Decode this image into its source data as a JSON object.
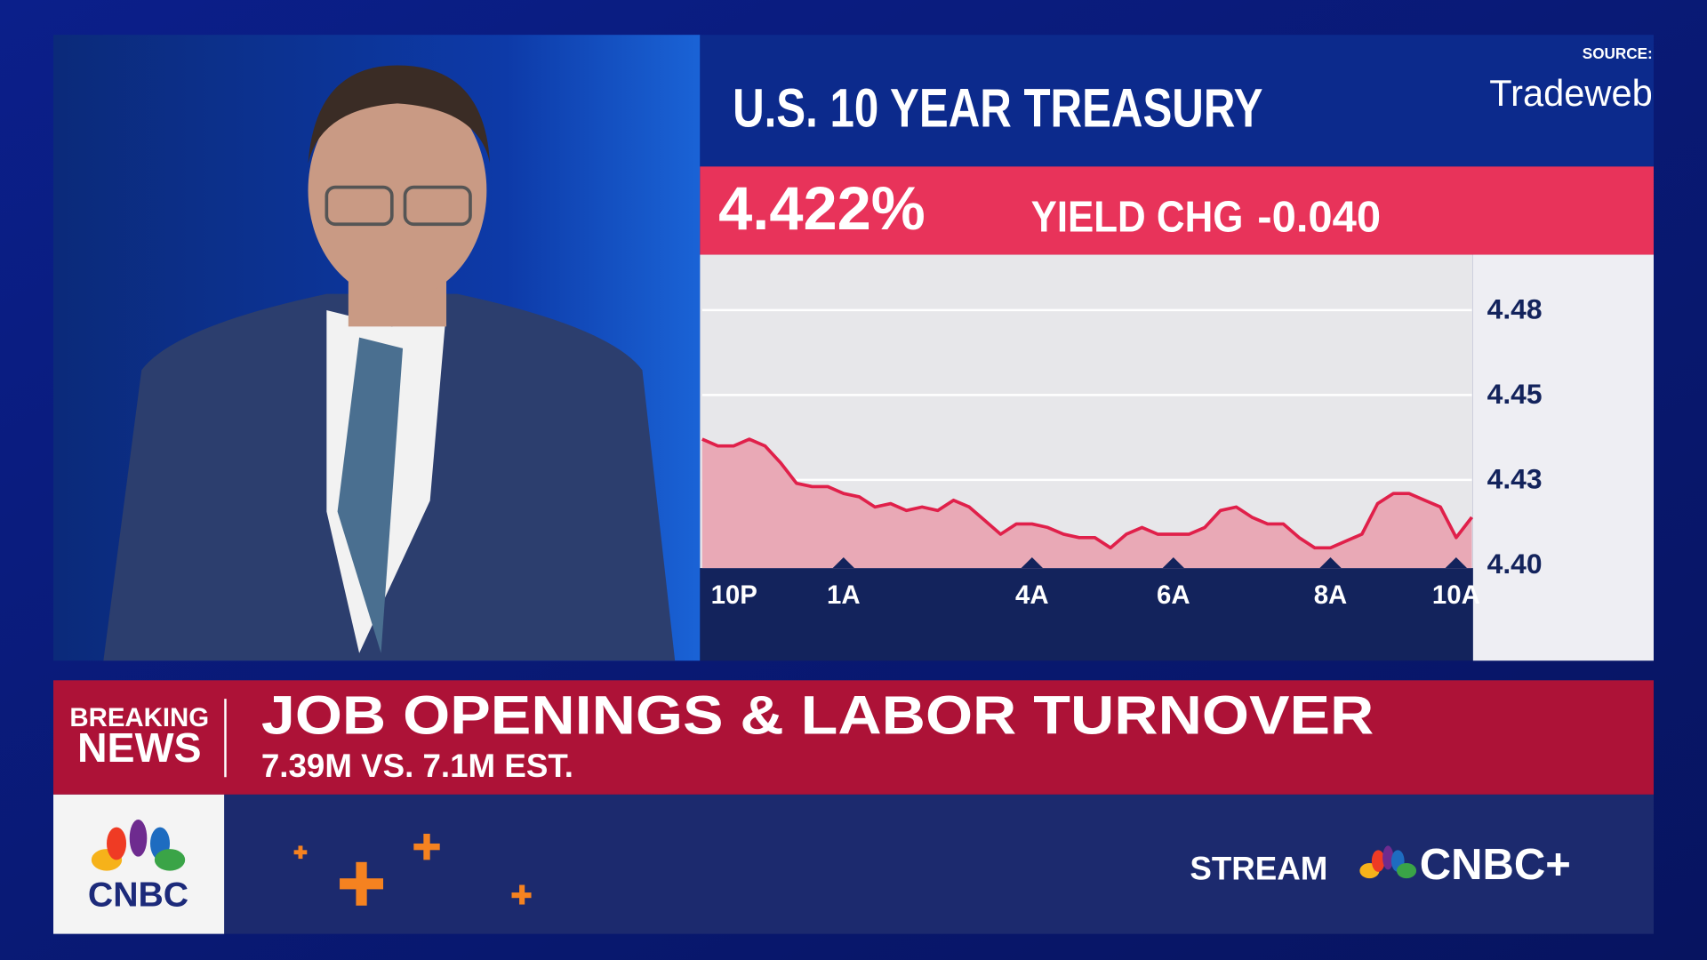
{
  "source": {
    "label": "SOURCE:",
    "name": "Tradeweb"
  },
  "quote": {
    "price": "4.422%",
    "change_label": "YIELD CHG",
    "change": "-0.040"
  },
  "lower_third": {
    "tag_top": "BREAKING",
    "tag_bottom": "NEWS",
    "headline": "JOB OPENINGS & LABOR TURNOVER",
    "subline": "7.39M VS. 7.1M EST."
  },
  "branding": {
    "logo": "CNBC",
    "stream": "STREAM",
    "service": "CNBC+"
  },
  "chart_data": {
    "type": "line",
    "title": "U.S. 10 YEAR TREASURY",
    "color": "#e0204a",
    "area_color": "#e9a9b6",
    "grid": true,
    "categories": [
      "10P",
      null,
      null,
      null,
      null,
      null,
      null,
      null,
      null,
      "1A",
      null,
      null,
      null,
      null,
      null,
      null,
      null,
      null,
      null,
      null,
      null,
      "4A",
      null,
      null,
      null,
      null,
      null,
      null,
      null,
      null,
      "6A",
      null,
      null,
      null,
      null,
      null,
      null,
      null,
      null,
      null,
      "8A",
      null,
      null,
      null,
      null,
      null,
      null,
      null,
      "10A",
      null
    ],
    "values": [
      4.437,
      4.435,
      4.435,
      4.437,
      4.435,
      4.43,
      4.424,
      4.423,
      4.423,
      4.421,
      4.42,
      4.417,
      4.418,
      4.416,
      4.417,
      4.416,
      4.419,
      4.417,
      4.413,
      4.409,
      4.412,
      4.412,
      4.411,
      4.409,
      4.408,
      4.408,
      4.405,
      4.409,
      4.411,
      4.409,
      4.409,
      4.409,
      4.411,
      4.416,
      4.417,
      4.414,
      4.412,
      4.412,
      4.408,
      4.405,
      4.405,
      4.407,
      4.409,
      4.418,
      4.421,
      4.421,
      4.419,
      4.417,
      4.408,
      4.414
    ],
    "ylim": [
      4.399,
      4.491
    ],
    "yticks": [
      {
        "value": 4.4,
        "label": "4.40"
      },
      {
        "value": 4.425,
        "label": "4.43"
      },
      4.45,
      {
        "value": 4.475,
        "label": "4.48"
      }
    ]
  }
}
